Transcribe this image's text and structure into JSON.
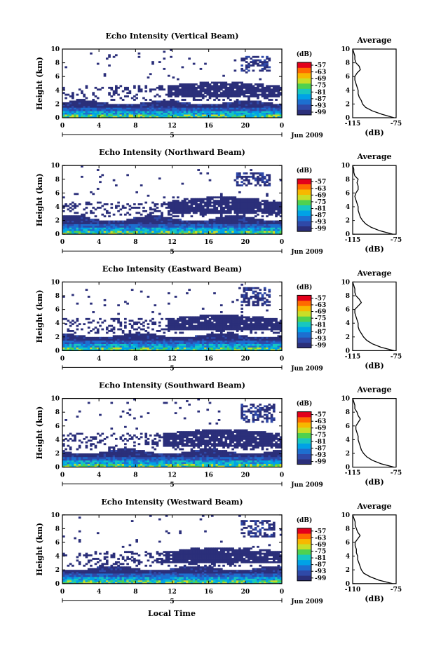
{
  "figure": {
    "bottom_xlabel": "Local Time"
  },
  "chart_data": [
    {
      "type": "heatmap",
      "title": "Echo Intensity (Vertical Beam)",
      "ylabel": "Height (km)",
      "xlim": [
        0,
        24
      ],
      "ylim": [
        0,
        10
      ],
      "x_ticks": [
        "0",
        "4",
        "8",
        "12",
        "16",
        "20",
        "0"
      ],
      "y_ticks": [
        "0",
        "2",
        "4",
        "6",
        "8",
        "10"
      ],
      "date_marker": "5",
      "date_label": "Jun 2009",
      "colorbar": {
        "label": "(dB)",
        "ticks": [
          "-57",
          "-63",
          "-69",
          "-75",
          "-81",
          "-87",
          "-93",
          "-99"
        ]
      },
      "features": {
        "base_top_km": [
          1.8,
          2.4
        ],
        "mid_layer_km": [
          3.0,
          4.5
        ],
        "mid_layer_start_hour": 11.5,
        "upper_patch": {
          "hours": [
            19.5,
            22.5
          ],
          "km": [
            6.6,
            8.8
          ]
        }
      },
      "average_profile": {
        "title": "Average",
        "xlabel": "(dB)",
        "xlim": [
          -115,
          -75
        ],
        "x_ticks": [
          "-115",
          "-75"
        ],
        "height_km": [
          0,
          0.5,
          1,
          1.5,
          2,
          2.5,
          3,
          3.5,
          4,
          4.5,
          5,
          5.5,
          6,
          6.5,
          7,
          7.5,
          8,
          8.5,
          9,
          9.5,
          10
        ],
        "values_db": [
          -77,
          -88,
          -97,
          -103,
          -106,
          -107,
          -109,
          -110,
          -110,
          -111,
          -112,
          -113,
          -113,
          -111,
          -108,
          -109,
          -112,
          -113,
          -113,
          -114,
          -115
        ]
      }
    },
    {
      "type": "heatmap",
      "title": "Echo Intensity (Northward Beam)",
      "ylabel": "Height (km)",
      "xlim": [
        0,
        24
      ],
      "ylim": [
        0,
        10
      ],
      "x_ticks": [
        "0",
        "4",
        "8",
        "12",
        "16",
        "20",
        "0"
      ],
      "y_ticks": [
        "0",
        "2",
        "4",
        "6",
        "8",
        "10"
      ],
      "date_marker": "5",
      "date_label": "Jun 2009",
      "colorbar": {
        "label": "(dB)",
        "ticks": [
          "-57",
          "-63",
          "-69",
          "-75",
          "-81",
          "-87",
          "-93",
          "-99"
        ]
      },
      "features": {
        "base_top_km": [
          1.8,
          2.6
        ],
        "mid_layer_km": [
          3.0,
          4.7
        ],
        "mid_layer_start_hour": 11.5,
        "upper_patch": {
          "hours": [
            19.0,
            22.5
          ],
          "km": [
            6.8,
            8.8
          ]
        }
      },
      "average_profile": {
        "title": "Average",
        "xlabel": "(dB)",
        "xlim": [
          -115,
          -75
        ],
        "x_ticks": [
          "-115",
          "-75"
        ],
        "height_km": [
          0,
          0.5,
          1,
          1.5,
          2,
          2.5,
          3,
          3.5,
          4,
          4.5,
          5,
          5.5,
          6,
          6.5,
          7,
          7.5,
          8,
          8.5,
          9,
          9.5,
          10
        ],
        "values_db": [
          -78,
          -90,
          -98,
          -103,
          -106,
          -108,
          -109,
          -110,
          -110,
          -111,
          -112,
          -113,
          -112,
          -110,
          -110,
          -111,
          -110,
          -113,
          -114,
          -114,
          -115
        ]
      }
    },
    {
      "type": "heatmap",
      "title": "Echo Intensity (Eastward Beam)",
      "ylabel": "Height (km)",
      "xlim": [
        0,
        24
      ],
      "ylim": [
        0,
        10
      ],
      "x_ticks": [
        "0",
        "4",
        "8",
        "12",
        "16",
        "20",
        "0"
      ],
      "y_ticks": [
        "0",
        "2",
        "4",
        "6",
        "8",
        "10"
      ],
      "date_marker": "5",
      "date_label": "Jun 2009",
      "colorbar": {
        "label": "(dB)",
        "ticks": [
          "-57",
          "-63",
          "-69",
          "-75",
          "-81",
          "-87",
          "-93",
          "-99"
        ]
      },
      "features": {
        "base_top_km": [
          1.8,
          2.5
        ],
        "mid_layer_km": [
          3.0,
          4.5
        ],
        "mid_layer_start_hour": 11.5,
        "upper_patch": {
          "hours": [
            19.5,
            22.5
          ],
          "km": [
            6.5,
            9.0
          ]
        }
      },
      "average_profile": {
        "title": "Average",
        "xlabel": "(dB)",
        "xlim": [
          -115,
          -75
        ],
        "x_ticks": [
          "-115",
          "-75"
        ],
        "height_km": [
          0,
          0.5,
          1,
          1.5,
          2,
          2.5,
          3,
          3.5,
          4,
          4.5,
          5,
          5.5,
          6,
          6.5,
          7,
          7.5,
          8,
          8.5,
          9,
          9.5,
          10
        ],
        "values_db": [
          -77,
          -89,
          -97,
          -102,
          -105,
          -107,
          -109,
          -110,
          -110,
          -111,
          -112,
          -113,
          -113,
          -110,
          -107,
          -109,
          -112,
          -113,
          -113,
          -114,
          -115
        ]
      }
    },
    {
      "type": "heatmap",
      "title": "Echo Intensity (Southward Beam)",
      "ylabel": "Height (km)",
      "xlim": [
        0,
        24
      ],
      "ylim": [
        0,
        10
      ],
      "x_ticks": [
        "0",
        "4",
        "8",
        "12",
        "16",
        "20",
        "0"
      ],
      "y_ticks": [
        "0",
        "2",
        "4",
        "6",
        "8",
        "10"
      ],
      "date_marker": "5",
      "date_label": "Jun 2009",
      "colorbar": {
        "label": "(dB)",
        "ticks": [
          "-57",
          "-63",
          "-69",
          "-75",
          "-81",
          "-87",
          "-93",
          "-99"
        ]
      },
      "features": {
        "base_top_km": [
          1.8,
          2.6
        ],
        "mid_layer_km": [
          3.0,
          4.8
        ],
        "mid_layer_start_hour": 11.0,
        "upper_patch": {
          "hours": [
            19.5,
            23.0
          ],
          "km": [
            6.4,
            9.2
          ]
        }
      },
      "average_profile": {
        "title": "Average",
        "xlabel": "(dB)",
        "xlim": [
          -115,
          -75
        ],
        "x_ticks": [
          "-115",
          "-75"
        ],
        "height_km": [
          0,
          0.5,
          1,
          1.5,
          2,
          2.5,
          3,
          3.5,
          4,
          4.5,
          5,
          5.5,
          6,
          6.5,
          7,
          7.5,
          8,
          8.5,
          9,
          9.5,
          10
        ],
        "values_db": [
          -77,
          -89,
          -97,
          -102,
          -105,
          -107,
          -108,
          -109,
          -110,
          -110,
          -111,
          -112,
          -112,
          -110,
          -108,
          -110,
          -111,
          -113,
          -113,
          -114,
          -115
        ]
      }
    },
    {
      "type": "heatmap",
      "title": "Echo Intensity (Westward Beam)",
      "ylabel": "Height (km)",
      "xlim": [
        0,
        24
      ],
      "ylim": [
        0,
        10
      ],
      "x_ticks": [
        "0",
        "4",
        "8",
        "12",
        "16",
        "20",
        "0"
      ],
      "y_ticks": [
        "0",
        "2",
        "4",
        "6",
        "8",
        "10"
      ],
      "date_marker": "5",
      "date_label": "Jun 2009",
      "colorbar": {
        "label": "(dB)",
        "ticks": [
          "-57",
          "-63",
          "-69",
          "-75",
          "-81",
          "-87",
          "-93",
          "-99"
        ]
      },
      "features": {
        "base_top_km": [
          1.8,
          2.5
        ],
        "mid_layer_km": [
          3.0,
          4.6
        ],
        "mid_layer_start_hour": 11.0,
        "upper_patch": {
          "hours": [
            19.5,
            23.0
          ],
          "km": [
            6.6,
            9.2
          ]
        }
      },
      "average_profile": {
        "title": "Average",
        "xlabel": "(dB)",
        "xlim": [
          -110,
          -75
        ],
        "x_ticks": [
          "-110",
          "-75"
        ],
        "height_km": [
          0,
          0.5,
          1,
          1.5,
          2,
          2.5,
          3,
          3.5,
          4,
          4.5,
          5,
          5.5,
          6,
          6.5,
          7,
          7.5,
          8,
          8.5,
          9,
          9.5,
          10
        ],
        "values_db": [
          -78,
          -89,
          -96,
          -101,
          -103,
          -104,
          -105,
          -106,
          -106,
          -107,
          -107,
          -108,
          -108,
          -106,
          -104,
          -106,
          -107,
          -108,
          -108,
          -109,
          -110
        ]
      }
    }
  ]
}
